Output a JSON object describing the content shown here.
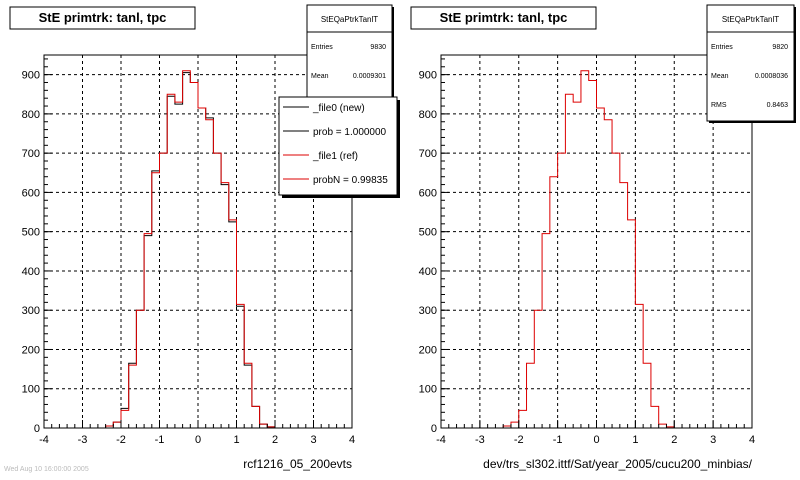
{
  "chart_data": [
    {
      "type": "histogram",
      "title": "StE primtrk: tanl, tpc",
      "xlabel": "rcf1216_05_200evts",
      "xlim": [
        -4,
        4
      ],
      "ylim": [
        0,
        950
      ],
      "xticks": [
        -4,
        -3,
        -2,
        -1,
        0,
        1,
        2,
        3,
        4
      ],
      "yticks": [
        0,
        100,
        200,
        300,
        400,
        500,
        600,
        700,
        800,
        900
      ],
      "grid": true,
      "bin_edges": [
        -4.0,
        -3.8,
        -3.6,
        -3.4,
        -3.2,
        -3.0,
        -2.8,
        -2.6,
        -2.4,
        -2.2,
        -2.0,
        -1.8,
        -1.6,
        -1.4,
        -1.2,
        -1.0,
        -0.8,
        -0.6,
        -0.4,
        -0.2,
        0.0,
        0.2,
        0.4,
        0.6,
        0.8,
        1.0,
        1.2,
        1.4,
        1.6,
        1.8,
        2.0,
        2.2,
        2.4,
        2.6,
        2.8,
        3.0,
        3.2,
        3.4,
        3.6,
        3.8,
        4.0
      ],
      "series": [
        {
          "name": "_file0 (new)",
          "color": "#000000",
          "values": [
            0,
            0,
            0,
            0,
            0,
            0,
            0,
            0,
            5,
            15,
            50,
            165,
            300,
            490,
            655,
            700,
            845,
            825,
            905,
            880,
            815,
            790,
            700,
            620,
            525,
            310,
            160,
            55,
            10,
            3,
            0,
            0,
            0,
            0,
            0,
            0,
            0,
            0,
            0,
            0
          ]
        },
        {
          "name": "_file1 (ref)",
          "color": "#dd0000",
          "values": [
            0,
            0,
            0,
            0,
            0,
            0,
            0,
            0,
            5,
            15,
            45,
            160,
            300,
            495,
            650,
            700,
            850,
            830,
            910,
            880,
            815,
            785,
            700,
            625,
            530,
            315,
            165,
            55,
            10,
            3,
            0,
            0,
            0,
            0,
            0,
            0,
            0,
            0,
            0,
            0
          ]
        }
      ],
      "stats": {
        "name": "StEQaPtrkTanlT",
        "entries_label": "Entries",
        "entries": "9830",
        "mean_label": "Mean",
        "mean": "0.0009301"
      },
      "legend": {
        "placement": "top-right",
        "items": [
          "_file0 (new)",
          "prob = 1.000000",
          "_file1 (ref)",
          "probN = 0.99835"
        ]
      }
    },
    {
      "type": "histogram",
      "title": "StE primtrk: tanl, tpc",
      "xlabel": "dev/trs_sl302.ittf/Sat/year_2005/cucu200_minbias/",
      "xlim": [
        -4,
        4
      ],
      "ylim": [
        0,
        950
      ],
      "xticks": [
        -4,
        -3,
        -2,
        -1,
        0,
        1,
        2,
        3,
        4
      ],
      "yticks": [
        0,
        100,
        200,
        300,
        400,
        500,
        600,
        700,
        800,
        900
      ],
      "grid": true,
      "bin_edges": [
        -4.0,
        -3.8,
        -3.6,
        -3.4,
        -3.2,
        -3.0,
        -2.8,
        -2.6,
        -2.4,
        -2.2,
        -2.0,
        -1.8,
        -1.6,
        -1.4,
        -1.2,
        -1.0,
        -0.8,
        -0.6,
        -0.4,
        -0.2,
        0.0,
        0.2,
        0.4,
        0.6,
        0.8,
        1.0,
        1.2,
        1.4,
        1.6,
        1.8,
        2.0,
        2.2,
        2.4,
        2.6,
        2.8,
        3.0,
        3.2,
        3.4,
        3.6,
        3.8,
        4.0
      ],
      "series": [
        {
          "color": "#dd0000",
          "values": [
            0,
            0,
            0,
            0,
            0,
            0,
            0,
            0,
            5,
            15,
            45,
            165,
            300,
            495,
            640,
            700,
            850,
            830,
            910,
            885,
            815,
            785,
            700,
            625,
            530,
            315,
            165,
            55,
            10,
            3,
            0,
            0,
            0,
            0,
            0,
            0,
            0,
            0,
            0,
            0
          ]
        }
      ],
      "stats": {
        "name": "StEQaPtrkTanlT",
        "entries_label": "Entries",
        "entries": "9820",
        "mean_label": "Mean",
        "mean": "0.0008036",
        "rms_label": "RMS",
        "rms": "0.8463"
      }
    }
  ],
  "footer_text": "Wed Aug 10 16:00:00 2005"
}
